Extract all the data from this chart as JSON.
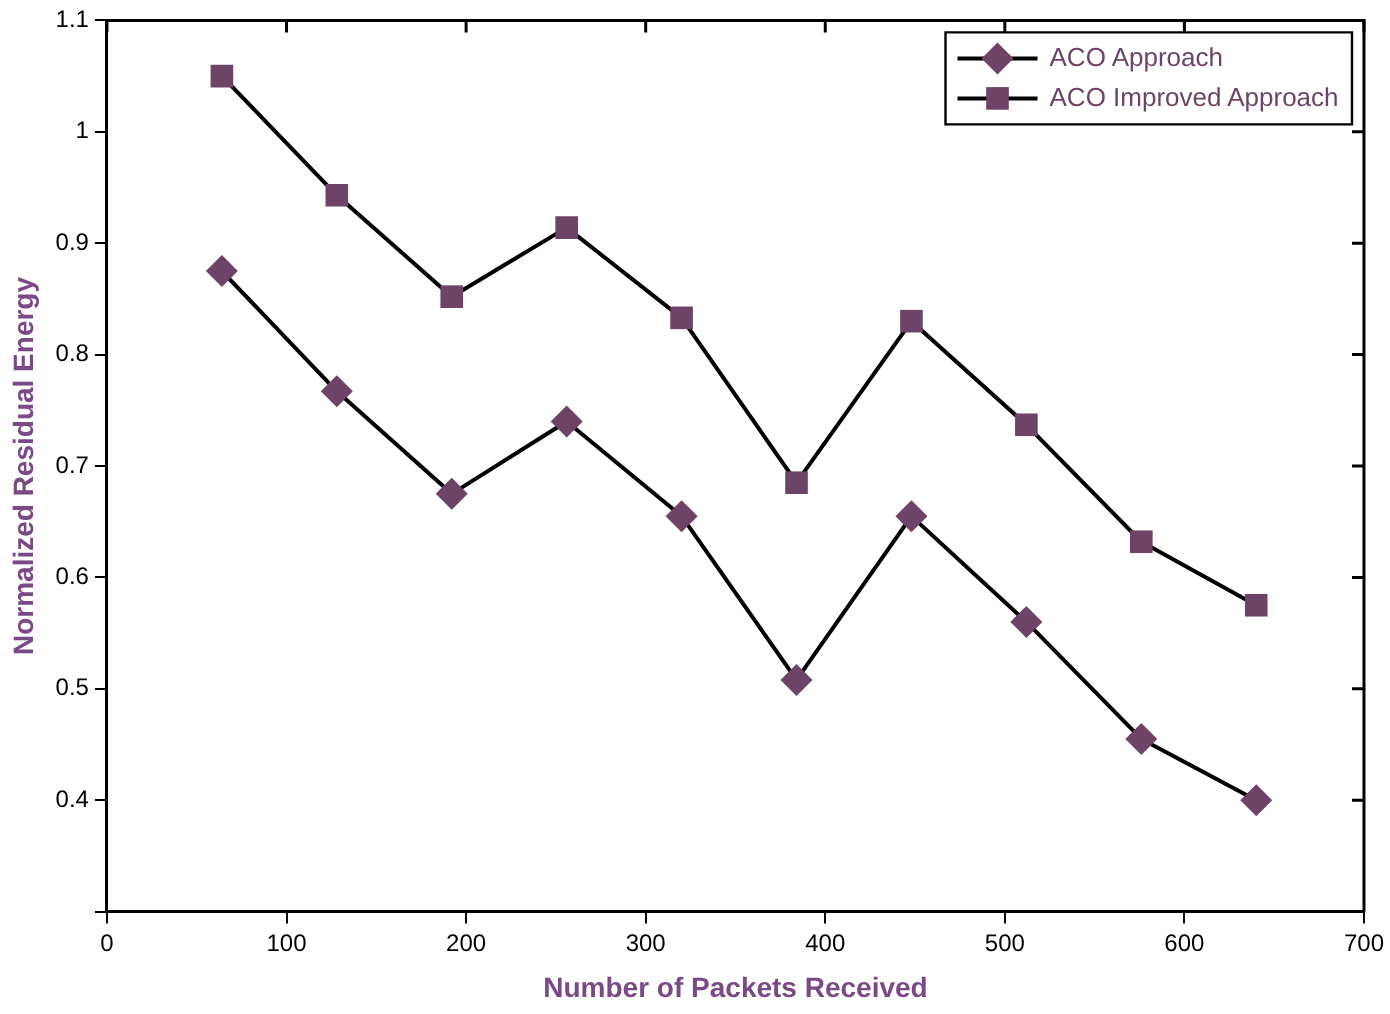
{
  "chart_data": {
    "type": "line",
    "xlabel": "Number of Packets Received",
    "ylabel": "Normalized Residual Energy",
    "x": [
      64,
      128,
      192,
      256,
      320,
      384,
      448,
      512,
      576,
      640
    ],
    "series": [
      {
        "name": "ACO Approach",
        "color": "#6d4466",
        "marker": "diamond",
        "values": [
          0.875,
          0.767,
          0.675,
          0.74,
          0.655,
          0.508,
          0.655,
          0.56,
          0.455,
          0.4
        ]
      },
      {
        "name": "ACO Improved Approach",
        "color": "#6d4466",
        "marker": "square",
        "values": [
          1.05,
          0.943,
          0.852,
          0.914,
          0.833,
          0.685,
          0.83,
          0.737,
          0.632,
          0.575
        ]
      }
    ],
    "xlim": [
      0,
      700
    ],
    "xticks": [
      0,
      100,
      200,
      300,
      400,
      500,
      600,
      700
    ],
    "ylim": [
      0.3,
      1.1
    ],
    "yticks": [
      {
        "value": 0.3,
        "label": null
      },
      0.4,
      0.5,
      0.6,
      0.7,
      0.8,
      0.9,
      1,
      1.1
    ],
    "grid": false,
    "legend": "top right",
    "line_style": "solid"
  }
}
